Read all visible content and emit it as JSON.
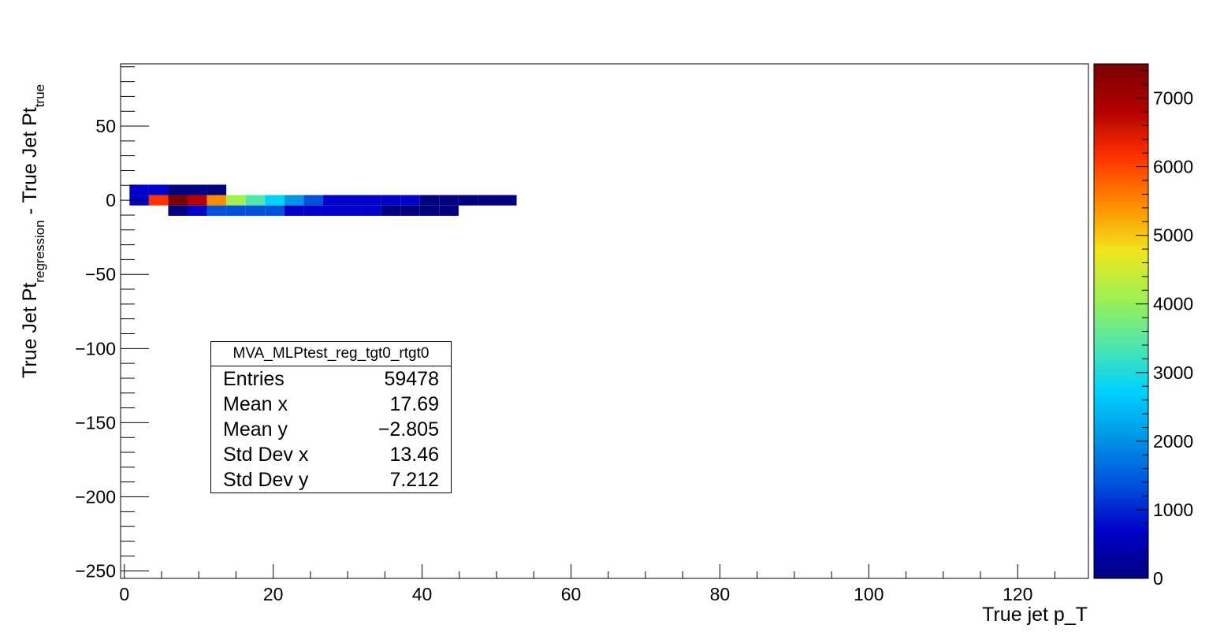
{
  "chart_data": {
    "type": "heatmap",
    "xlabel": "True jet p_T",
    "ylabel": "True Jet Pt",
    "ylabel_sub1": "regression",
    "ylabel_mid": " - True Jet Pt",
    "ylabel_sub2": "true",
    "xlim": [
      -0.5,
      129.5
    ],
    "ylim": [
      -255,
      92
    ],
    "x_ticks": [
      0,
      20,
      40,
      60,
      80,
      100,
      120
    ],
    "x_tick_labels": [
      "0",
      "20",
      "40",
      "60",
      "80",
      "100",
      "120"
    ],
    "y_ticks": [
      -250,
      -200,
      -150,
      -100,
      -50,
      0,
      50
    ],
    "y_tick_labels": [
      "−250",
      "−200",
      "−150",
      "−100",
      "−50",
      "0",
      "50"
    ],
    "z_max": 7500,
    "z_ticks": [
      0,
      1000,
      2000,
      3000,
      4000,
      5000,
      6000,
      7000
    ],
    "z_tick_labels": [
      "0",
      "1000",
      "2000",
      "3000",
      "4000",
      "5000",
      "6000",
      "7000"
    ],
    "colormap": [
      "#000080",
      "#0000c8",
      "#0050dc",
      "#0096e6",
      "#00d2ff",
      "#50e6aa",
      "#a0f050",
      "#f0e61e",
      "#ff8c00",
      "#ff3200",
      "#b40000",
      "#780000"
    ],
    "bin_width_x": 2.6,
    "bin_height_y": 7.0,
    "bins": [
      [
        2,
        0,
        800
      ],
      [
        4.6,
        0,
        6400
      ],
      [
        7.2,
        0,
        7400
      ],
      [
        9.8,
        0,
        6800
      ],
      [
        12.4,
        0,
        5300
      ],
      [
        15,
        0,
        4300
      ],
      [
        17.6,
        0,
        3500
      ],
      [
        20.2,
        0,
        2600
      ],
      [
        22.8,
        0,
        1800
      ],
      [
        25.4,
        0,
        1300
      ],
      [
        28,
        0,
        1000
      ],
      [
        30.6,
        0,
        800
      ],
      [
        33.2,
        0,
        600
      ],
      [
        35.8,
        0,
        500
      ],
      [
        38.4,
        0,
        400
      ],
      [
        41,
        0,
        300
      ],
      [
        43.6,
        0,
        250
      ],
      [
        46.2,
        0,
        200
      ],
      [
        48.8,
        0,
        150
      ],
      [
        51.4,
        0,
        120
      ],
      [
        2,
        7,
        600
      ],
      [
        4.6,
        7,
        400
      ],
      [
        7.2,
        7,
        300
      ],
      [
        9.8,
        7,
        200
      ],
      [
        12.4,
        7,
        150
      ],
      [
        7.2,
        -7,
        300
      ],
      [
        9.8,
        -7,
        900
      ],
      [
        12.4,
        -7,
        1200
      ],
      [
        15,
        -7,
        1300
      ],
      [
        17.6,
        -7,
        1200
      ],
      [
        20.2,
        -7,
        1100
      ],
      [
        22.8,
        -7,
        950
      ],
      [
        25.4,
        -7,
        800
      ],
      [
        28,
        -7,
        650
      ],
      [
        30.6,
        -7,
        500
      ],
      [
        33.2,
        -7,
        400
      ],
      [
        35.8,
        -7,
        320
      ],
      [
        38.4,
        -7,
        260
      ],
      [
        41,
        -7,
        200
      ],
      [
        43.6,
        -7,
        160
      ]
    ],
    "stats_box": {
      "title": "MVA_MLPtest_reg_tgt0_rtgt0",
      "rows": [
        {
          "label": "Entries",
          "value": "59478"
        },
        {
          "label": "Mean x",
          "value": "17.69"
        },
        {
          "label": "Mean y",
          "value": "−2.805"
        },
        {
          "label": "Std Dev x",
          "value": "13.46"
        },
        {
          "label": "Std Dev y",
          "value": "7.212"
        }
      ]
    }
  }
}
